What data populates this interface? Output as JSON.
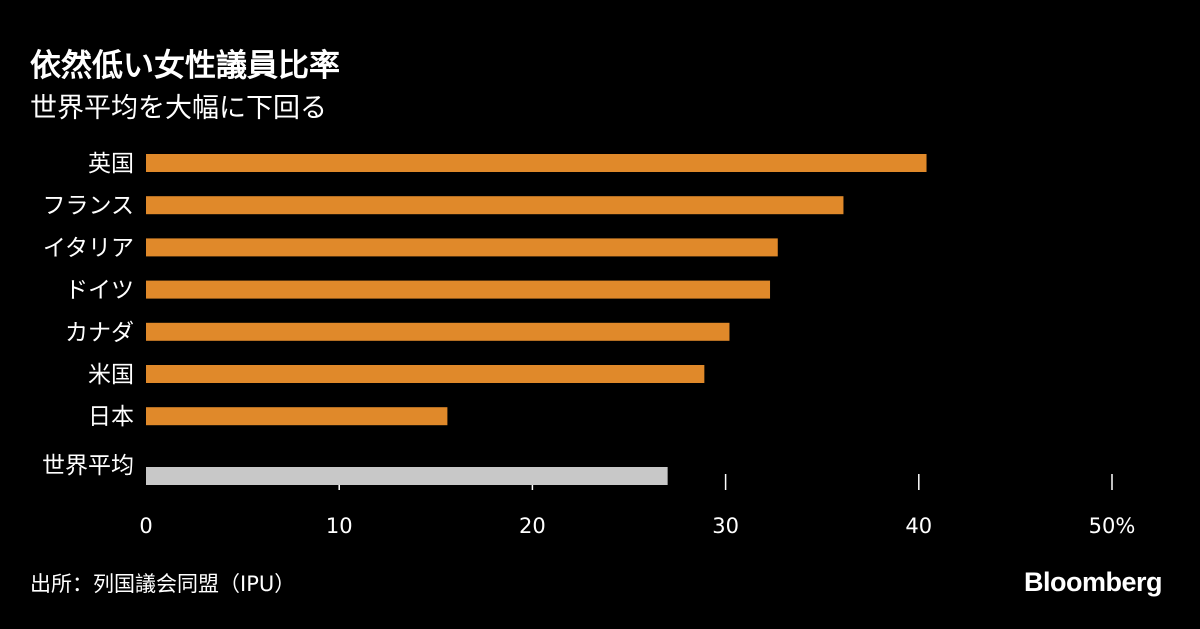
{
  "header": {
    "title": "依然低い女性議員比率",
    "subtitle": "世界平均を大幅に下回る"
  },
  "footer": {
    "source": "出所：列国議会同盟（IPU）",
    "brand": "Bloomberg"
  },
  "colors": {
    "background": "#000000",
    "bar": "#e0892a",
    "average_bar": "#c8c8c8",
    "text": "#ffffff",
    "tick": "#ffffff"
  },
  "chart_data": {
    "type": "bar",
    "orientation": "horizontal",
    "categories": [
      "英国",
      "フランス",
      "イタリア",
      "ドイツ",
      "カナダ",
      "米国",
      "日本",
      "世界平均"
    ],
    "values": [
      40.4,
      36.1,
      32.7,
      32.3,
      30.2,
      28.9,
      15.6,
      27.0
    ],
    "highlight": {
      "世界平均": "average_bar"
    },
    "xlim": [
      0,
      50
    ],
    "xticks": [
      0,
      10,
      20,
      30,
      40,
      50
    ],
    "xtick_labels": [
      "0",
      "10",
      "20",
      "30",
      "40",
      "50%"
    ],
    "xlabel": "",
    "ylabel": "",
    "grid": false,
    "legend": "none"
  }
}
